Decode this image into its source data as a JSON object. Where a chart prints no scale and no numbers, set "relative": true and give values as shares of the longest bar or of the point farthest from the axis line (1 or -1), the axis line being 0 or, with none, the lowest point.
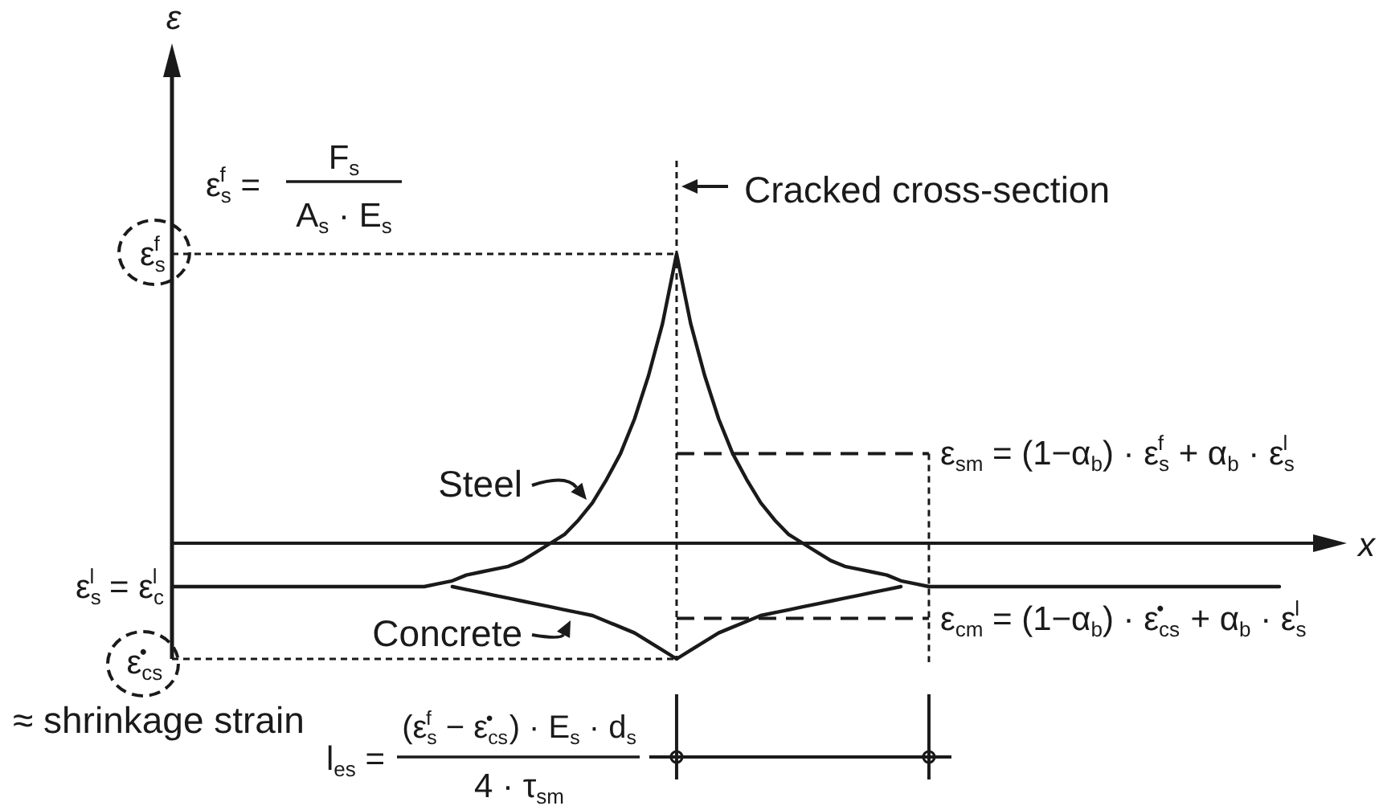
{
  "chart_data": {
    "type": "line",
    "relative": true,
    "xlabel": "x",
    "legend": "bottom left",
    "categories": [
      null,
      null,
      null,
      null,
      null,
      null,
      null,
      null,
      null,
      null,
      null,
      null,
      null,
      null,
      null,
      null,
      null,
      null,
      null,
      null,
      null,
      null,
      null,
      null,
      null,
      null,
      null,
      null,
      null,
      null,
      null,
      null,
      null,
      null,
      null,
      null,
      null,
      null,
      null,
      null,
      null,
      null,
      null,
      null,
      null,
      null,
      null,
      null,
      null,
      null,
      null,
      null,
      null,
      null,
      null,
      null,
      null,
      null,
      null,
      null,
      null,
      null,
      null,
      null,
      null,
      null,
      null,
      null,
      null,
      null,
      null,
      null,
      null,
      null,
      null,
      null,
      null,
      null,
      null,
      null
    ],
    "series": [
      {
        "name": "Steel",
        "color": "#1a1a1a",
        "values": [
          -0.15,
          -0.15,
          -0.15,
          -0.15,
          -0.15,
          -0.15,
          -0.15,
          -0.15,
          -0.15,
          -0.15,
          -0.15,
          -0.15,
          -0.15,
          -0.15,
          -0.15,
          -0.15,
          -0.15,
          -0.15,
          -0.15,
          -0.14,
          -0.13,
          -0.11,
          -0.1,
          -0.09,
          -0.08,
          -0.06,
          -0.03,
          0,
          0.03,
          0.08,
          0.14,
          0.22,
          0.31,
          0.43,
          0.58,
          0.76,
          1,
          0.76,
          0.58,
          0.43,
          0.31,
          0.22,
          0.14,
          0.08,
          0.03,
          0,
          -0.03,
          -0.06,
          -0.08,
          -0.09,
          -0.1,
          -0.11,
          -0.13,
          -0.14,
          -0.15,
          -0.15,
          -0.15,
          -0.15,
          -0.15,
          -0.15,
          -0.15,
          -0.15,
          -0.15,
          -0.15,
          -0.15,
          -0.15,
          -0.15,
          -0.15,
          -0.15,
          -0.15,
          -0.15,
          -0.15,
          -0.15,
          -0.15,
          -0.15,
          -0.15,
          -0.15,
          -0.15,
          -0.15,
          -0.15
        ]
      },
      {
        "name": "Concrete",
        "color": "#1a1a1a",
        "values": [
          null,
          null,
          null,
          null,
          null,
          null,
          null,
          null,
          null,
          null,
          null,
          null,
          null,
          null,
          null,
          null,
          null,
          null,
          null,
          null,
          -0.15,
          -0.16,
          -0.17,
          -0.18,
          -0.19,
          -0.2,
          -0.21,
          -0.22,
          -0.23,
          -0.24,
          -0.25,
          -0.27,
          -0.29,
          -0.31,
          -0.34,
          -0.37,
          -0.4,
          -0.37,
          -0.34,
          -0.31,
          -0.29,
          -0.27,
          -0.25,
          -0.24,
          -0.23,
          -0.22,
          -0.21,
          -0.2,
          -0.19,
          -0.18,
          -0.17,
          -0.16,
          -0.15,
          null,
          null,
          null,
          null,
          null,
          null,
          null,
          null,
          null,
          null,
          null,
          null,
          null,
          null,
          null,
          null,
          null,
          null,
          null,
          null,
          null,
          null,
          null,
          null,
          null,
          null,
          null
        ]
      },
      {
        "color": "#1a1a1a",
        "line_style": "dotted",
        "values": [
          1,
          1,
          1,
          1,
          1,
          1,
          1,
          1,
          1,
          1,
          1,
          1,
          1,
          1,
          1,
          1,
          1,
          1,
          1,
          1,
          1,
          1,
          1,
          1,
          1,
          1,
          1,
          1,
          1,
          1,
          1,
          1,
          1,
          1,
          1,
          1,
          1,
          null,
          null,
          null,
          null,
          null,
          null,
          null,
          null,
          null,
          null,
          null,
          null,
          null,
          null,
          null,
          null,
          null,
          null,
          null,
          null,
          null,
          null,
          null,
          null,
          null,
          null,
          null,
          null,
          null,
          null,
          null,
          null,
          null,
          null,
          null,
          null,
          null,
          null,
          null,
          null,
          null,
          null,
          null
        ]
      },
      {
        "color": "#1a1a1a",
        "line_style": "dotted",
        "values": [
          -0.4,
          -0.4,
          -0.4,
          -0.4,
          -0.4,
          -0.4,
          -0.4,
          -0.4,
          -0.4,
          -0.4,
          -0.4,
          -0.4,
          -0.4,
          -0.4,
          -0.4,
          -0.4,
          -0.4,
          -0.4,
          -0.4,
          -0.4,
          -0.4,
          -0.4,
          -0.4,
          -0.4,
          -0.4,
          -0.4,
          -0.4,
          -0.4,
          -0.4,
          -0.4,
          -0.4,
          -0.4,
          -0.4,
          -0.4,
          -0.4,
          -0.4,
          -0.4,
          null,
          null,
          null,
          null,
          null,
          null,
          null,
          null,
          null,
          null,
          null,
          null,
          null,
          null,
          null,
          null,
          null,
          null,
          null,
          null,
          null,
          null,
          null,
          null,
          null,
          null,
          null,
          null,
          null,
          null,
          null,
          null,
          null,
          null,
          null,
          null,
          null,
          null,
          null,
          null,
          null,
          null,
          null
        ]
      },
      {
        "name": "ε$_{sm}$ = (1−α$_{b}$) · ε$_{s}$$^{f}$ + α$_{b}$ · ε$_{s}$$^{l}$",
        "color": "#1a1a1a",
        "line_style": "dashed",
        "values": [
          null,
          null,
          null,
          null,
          null,
          null,
          null,
          null,
          null,
          null,
          null,
          null,
          null,
          null,
          null,
          null,
          null,
          null,
          null,
          null,
          null,
          null,
          null,
          null,
          null,
          null,
          null,
          null,
          null,
          null,
          null,
          null,
          null,
          null,
          null,
          null,
          0.31,
          0.31,
          0.31,
          0.31,
          0.31,
          0.31,
          0.31,
          0.31,
          0.31,
          0.31,
          0.31,
          0.31,
          0.31,
          0.31,
          0.31,
          0.31,
          0.31,
          0.31,
          0.31,
          null,
          null,
          null,
          null,
          null,
          null,
          null,
          null,
          null,
          null,
          null,
          null,
          null,
          null,
          null,
          null,
          null,
          null,
          null,
          null,
          null,
          null,
          null,
          null,
          null
        ]
      },
      {
        "name": "ε$_{cm}$ = (1−α$_{b}$) · ε$_{cs}$$^{•}$ + α$_{b}$ · ε$_{s}$$^{l}$",
        "color": "#1a1a1a",
        "line_style": "dashed",
        "values": [
          null,
          null,
          null,
          null,
          null,
          null,
          null,
          null,
          null,
          null,
          null,
          null,
          null,
          null,
          null,
          null,
          null,
          null,
          null,
          null,
          null,
          null,
          null,
          null,
          null,
          null,
          null,
          null,
          null,
          null,
          null,
          null,
          null,
          null,
          null,
          null,
          -0.26,
          -0.26,
          -0.26,
          -0.26,
          -0.26,
          -0.26,
          -0.26,
          -0.26,
          -0.26,
          -0.26,
          -0.26,
          -0.26,
          -0.26,
          -0.26,
          -0.26,
          -0.26,
          -0.26,
          -0.26,
          -0.26,
          null,
          null,
          null,
          null,
          null,
          null,
          null,
          null,
          null,
          null,
          null,
          null,
          null,
          null,
          null,
          null,
          null,
          null,
          null,
          null,
          null,
          null,
          null,
          null,
          null
        ]
      }
    ],
    "annotations": [
      "ε$_{s}$$^{f}$ =",
      "F$_{s}$",
      "A$_{s}$ · E$_{s}$",
      {
        "text": "ε$_{s}$$^{f}$",
        "y": 1
      },
      "ε$_{s}$$^{l}$ = ε$_{c}$$^{l}$",
      "ε$_{cs}$$^{•}$",
      "≈ shrinkage strain",
      "l$_{es}$ =",
      "(ε$_{s}$$^{f}$ − ε$_{cs}$$^{•}$) · E$_{s}$ · d$_{s}$",
      "4 · τ$_{sm}$",
      "Cracked cross-section",
      "ε"
    ]
  }
}
